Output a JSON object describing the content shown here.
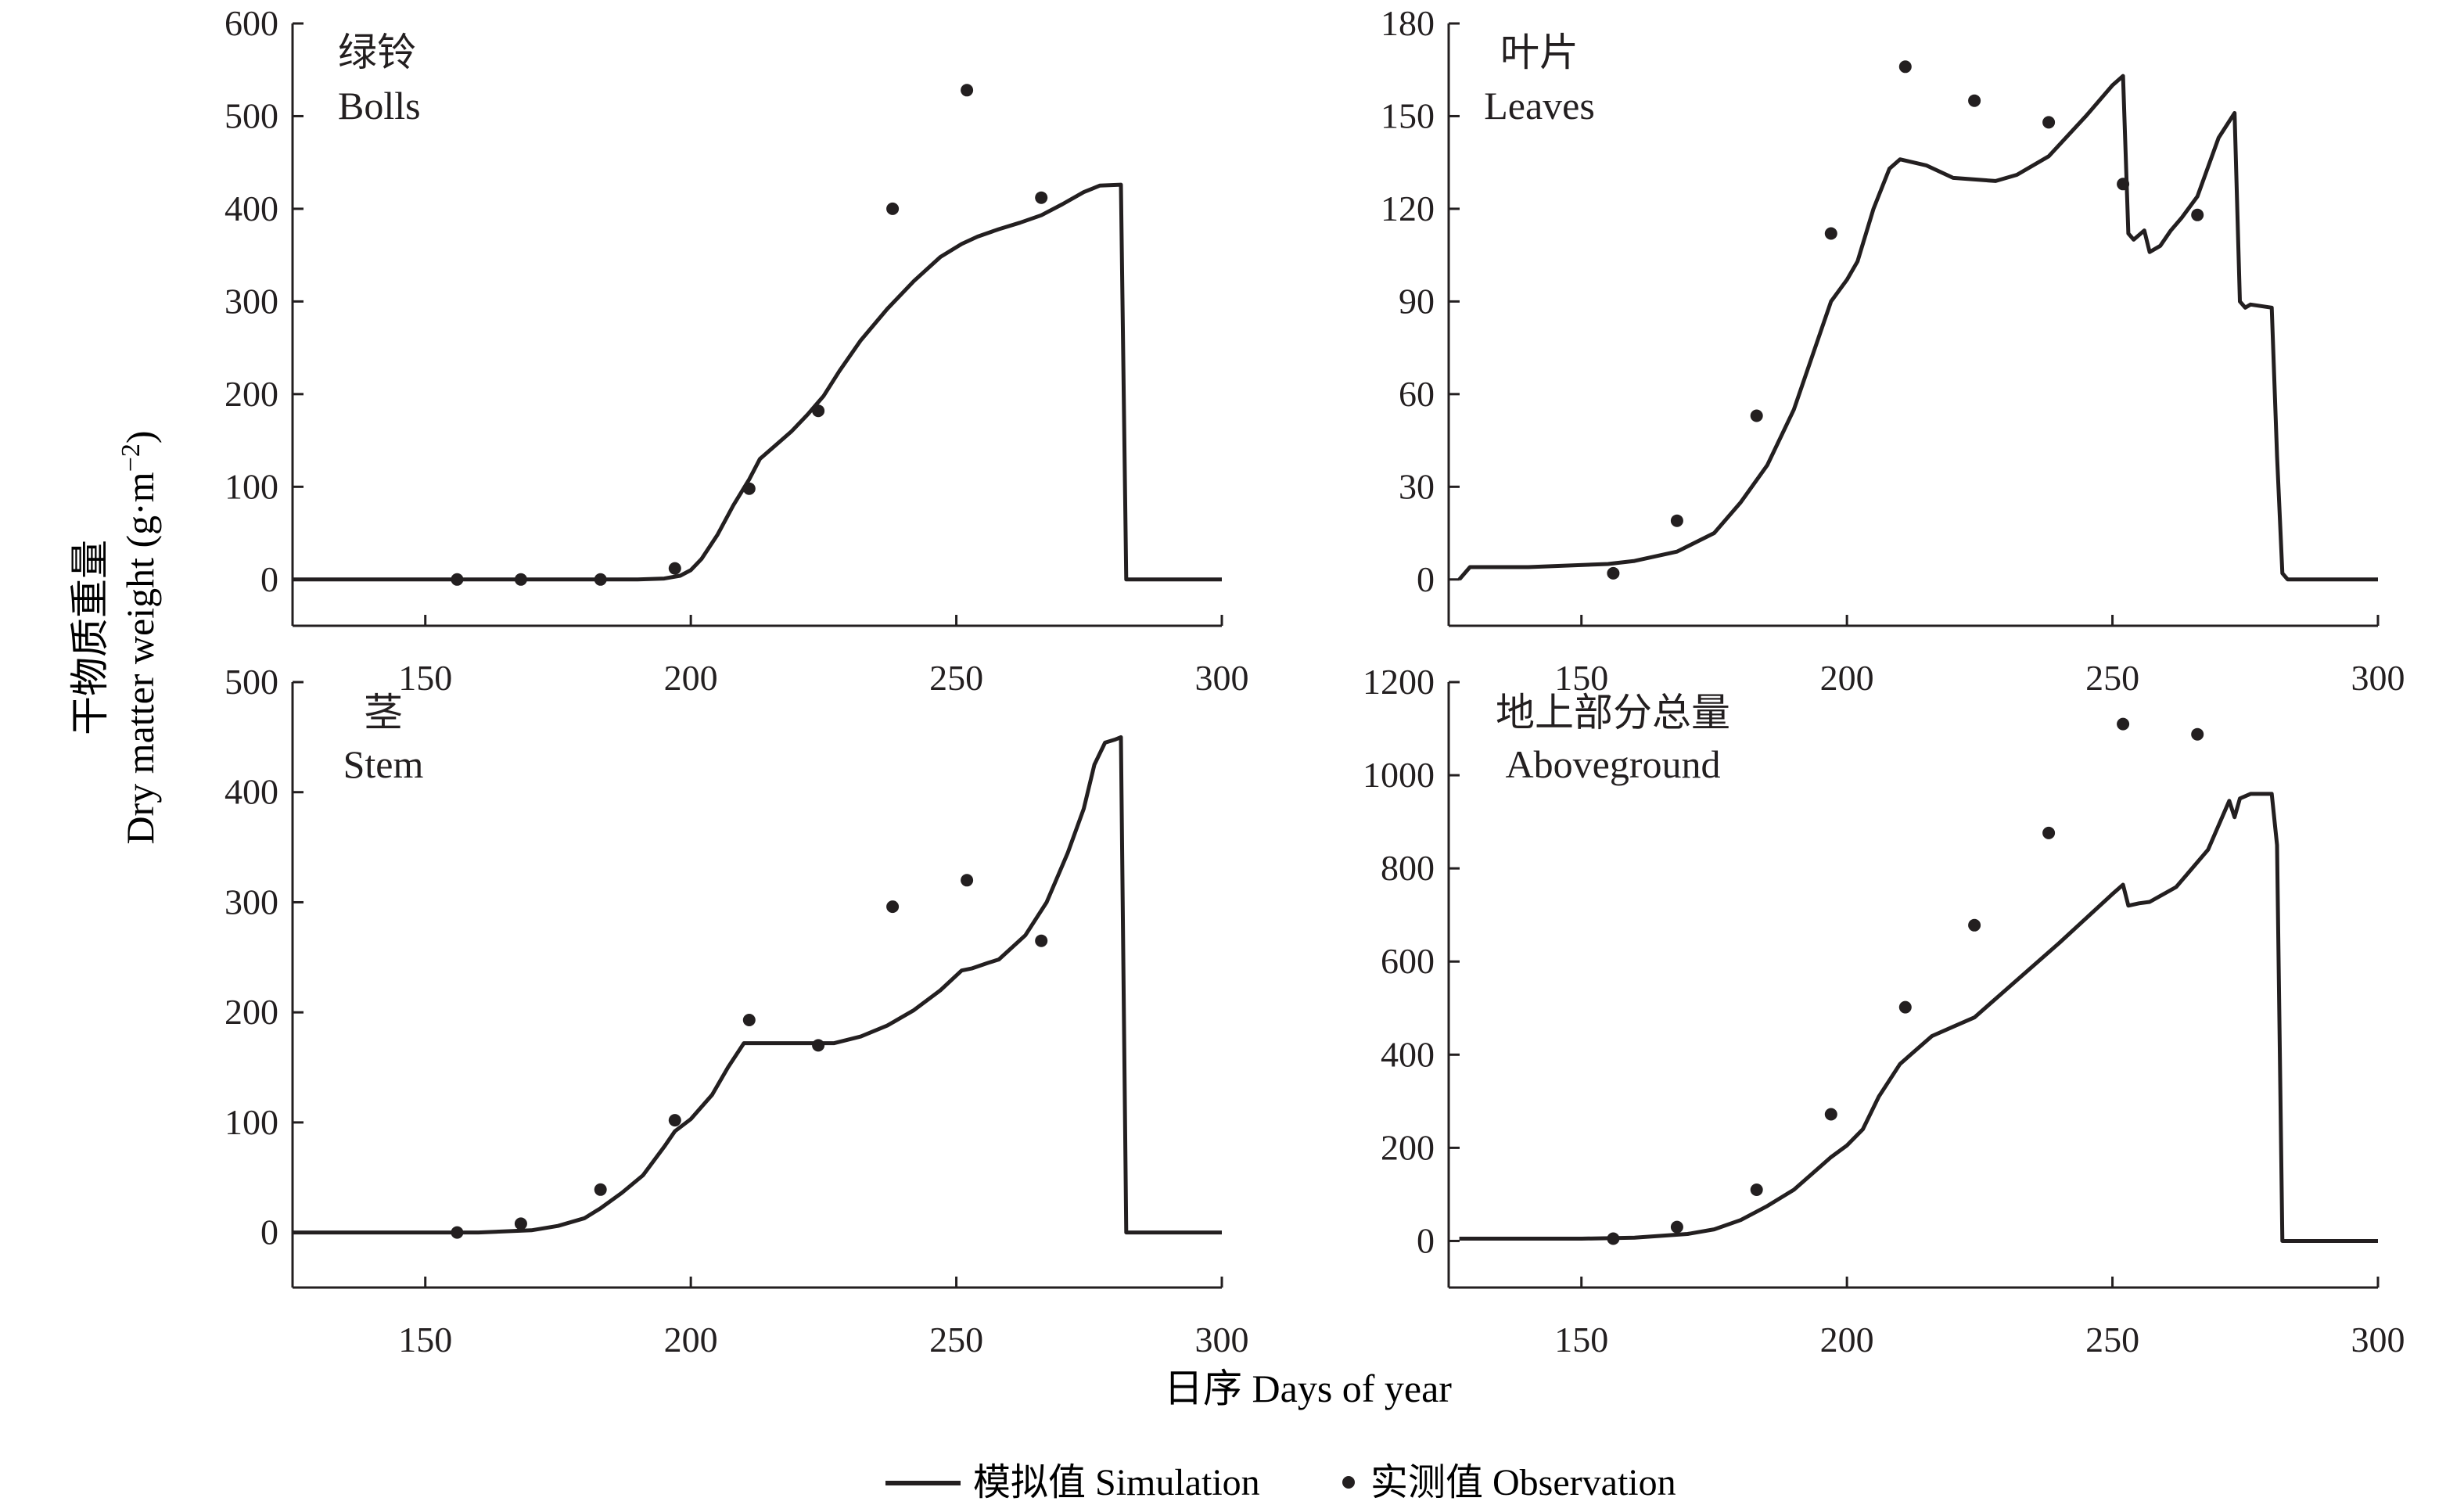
{
  "figure": {
    "ylabel_cn": "干物质重量",
    "ylabel_en": "Dry matter weight (g·m",
    "ylabel_sup": "−2",
    "ylabel_close": ")",
    "xlabel": "日序 Days of year",
    "legend": {
      "simulation": "模拟值 Simulation",
      "observation": "实测值 Observation"
    },
    "colors": {
      "ink": "#231f20",
      "background": "#ffffff"
    }
  },
  "chart_data": [
    {
      "type": "line",
      "title_cn": "绿铃",
      "title_en": "Bolls",
      "xlim": [
        125,
        300
      ],
      "ylim": [
        -50,
        600
      ],
      "xticks": [
        150,
        200,
        250,
        300
      ],
      "yticks": [
        0,
        100,
        200,
        300,
        400,
        500,
        600
      ],
      "series": [
        {
          "name": "模拟值 Simulation",
          "kind": "line",
          "x": [
            125,
            190,
            195,
            198,
            200,
            202,
            205,
            208,
            211,
            213,
            216,
            219,
            222,
            225,
            228,
            232,
            237,
            242,
            247,
            251,
            254,
            258,
            262,
            266,
            270,
            274,
            277,
            281,
            282,
            300
          ],
          "y": [
            0,
            0,
            1,
            4,
            10,
            22,
            48,
            80,
            108,
            130,
            145,
            160,
            178,
            198,
            225,
            258,
            292,
            322,
            348,
            362,
            370,
            378,
            385,
            393,
            405,
            418,
            425,
            426,
            0,
            0
          ]
        },
        {
          "name": "实测值 Observation",
          "kind": "scatter",
          "x": [
            156,
            168,
            183,
            197,
            211,
            224,
            238,
            252,
            266
          ],
          "y": [
            0,
            0,
            0,
            12,
            98,
            182,
            400,
            528,
            412
          ]
        }
      ]
    },
    {
      "type": "line",
      "title_cn": "叶片",
      "title_en": "Leaves",
      "xlim": [
        125,
        300
      ],
      "ylim": [
        -15,
        180
      ],
      "xticks": [
        150,
        200,
        250,
        300
      ],
      "yticks": [
        0,
        30,
        60,
        90,
        120,
        150,
        180
      ],
      "series": [
        {
          "name": "模拟值 Simulation",
          "kind": "line",
          "x": [
            127,
            129,
            140,
            155,
            160,
            168,
            175,
            180,
            185,
            190,
            195,
            197,
            200,
            202,
            205,
            208,
            210,
            215,
            220,
            228,
            232,
            238,
            245,
            250,
            252,
            253,
            254,
            256,
            257,
            259,
            261,
            263,
            266,
            270,
            273,
            274,
            275,
            276,
            280,
            281,
            282,
            283,
            300
          ],
          "y": [
            0,
            4,
            4,
            5,
            6,
            9,
            15,
            25,
            37,
            55,
            80,
            90,
            97,
            103,
            120,
            133,
            136,
            134,
            130,
            129,
            131,
            137,
            150,
            160,
            163,
            112,
            110,
            113,
            106,
            108,
            113,
            117,
            124,
            143,
            151,
            90,
            88,
            89,
            88,
            40,
            2,
            0,
            0
          ]
        },
        {
          "name": "实测值 Observation",
          "kind": "scatter",
          "x": [
            156,
            168,
            183,
            197,
            211,
            224,
            238,
            252,
            266
          ],
          "y": [
            2,
            19,
            53,
            112,
            166,
            155,
            148,
            128,
            118
          ]
        }
      ]
    },
    {
      "type": "line",
      "title_cn": "茎",
      "title_en": "Stem",
      "xlim": [
        125,
        300
      ],
      "ylim": [
        -50,
        500
      ],
      "xticks": [
        150,
        200,
        250,
        300
      ],
      "yticks": [
        0,
        100,
        200,
        300,
        400,
        500
      ],
      "series": [
        {
          "name": "模拟值 Simulation",
          "kind": "line",
          "x": [
            125,
            160,
            170,
            175,
            180,
            183,
            187,
            191,
            195,
            197,
            200,
            204,
            207,
            210,
            211,
            215,
            220,
            227,
            232,
            237,
            242,
            247,
            251,
            253,
            256,
            258,
            263,
            267,
            271,
            274,
            276,
            278,
            280,
            281,
            282,
            300
          ],
          "y": [
            0,
            0,
            2,
            6,
            13,
            22,
            36,
            52,
            78,
            92,
            103,
            125,
            150,
            172,
            172,
            172,
            172,
            172,
            178,
            188,
            202,
            220,
            238,
            240,
            245,
            248,
            270,
            300,
            345,
            385,
            425,
            445,
            448,
            450,
            0,
            0
          ]
        },
        {
          "name": "实测值 Observation",
          "kind": "scatter",
          "x": [
            156,
            168,
            183,
            197,
            211,
            224,
            238,
            252,
            266
          ],
          "y": [
            0,
            8,
            39,
            102,
            193,
            170,
            296,
            320,
            265
          ]
        }
      ]
    },
    {
      "type": "line",
      "title_cn": "地上部分总量",
      "title_en": "Aboveground",
      "xlim": [
        125,
        300
      ],
      "ylim": [
        -100,
        1200
      ],
      "xticks": [
        150,
        200,
        250,
        300
      ],
      "yticks": [
        0,
        200,
        400,
        600,
        800,
        1000,
        1200
      ],
      "series": [
        {
          "name": "模拟值 Simulation",
          "kind": "line",
          "x": [
            127,
            150,
            160,
            170,
            175,
            180,
            185,
            190,
            195,
            197,
            200,
            203,
            206,
            210,
            212,
            216,
            220,
            224,
            230,
            240,
            250,
            252,
            253,
            255,
            257,
            262,
            268,
            272,
            273,
            274,
            276,
            280,
            281,
            282,
            300
          ],
          "y": [
            5,
            5,
            7,
            15,
            25,
            45,
            75,
            110,
            160,
            180,
            205,
            240,
            310,
            380,
            400,
            440,
            460,
            480,
            540,
            640,
            745,
            765,
            720,
            725,
            728,
            760,
            840,
            945,
            910,
            950,
            960,
            960,
            850,
            0,
            0
          ]
        },
        {
          "name": "实测值 Observation",
          "kind": "scatter",
          "x": [
            156,
            168,
            183,
            197,
            211,
            224,
            238,
            252,
            266
          ],
          "y": [
            5,
            30,
            110,
            272,
            502,
            678,
            876,
            1110,
            1088
          ]
        }
      ]
    }
  ]
}
